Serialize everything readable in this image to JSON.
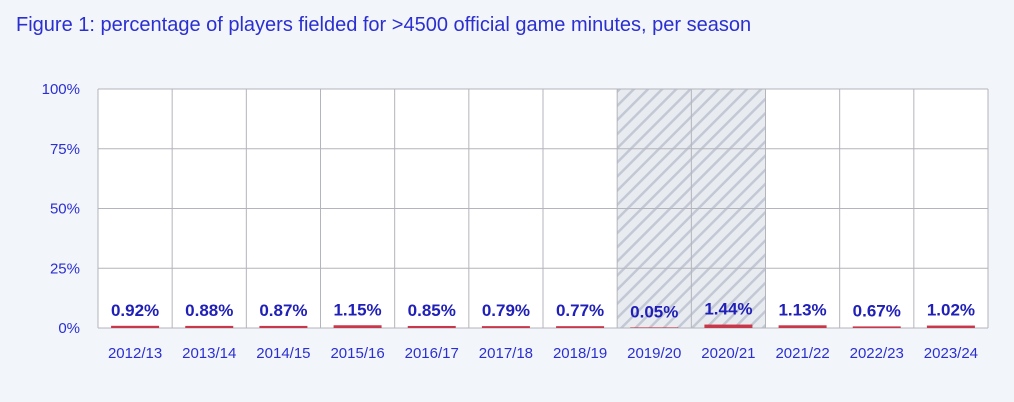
{
  "chart_data": {
    "type": "bar",
    "title": "Figure 1: percentage of players fielded for >4500 official game minutes, per season",
    "categories": [
      "2012/13",
      "2013/14",
      "2014/15",
      "2015/16",
      "2016/17",
      "2017/18",
      "2018/19",
      "2019/20",
      "2020/21",
      "2021/22",
      "2022/23",
      "2023/24"
    ],
    "values": [
      0.92,
      0.88,
      0.87,
      1.15,
      0.85,
      0.79,
      0.77,
      0.05,
      1.44,
      1.13,
      0.67,
      1.02
    ],
    "data_labels": [
      "0.92%",
      "0.88%",
      "0.87%",
      "1.15%",
      "0.85%",
      "0.79%",
      "0.77%",
      "0.05%",
      "1.44%",
      "1.13%",
      "0.67%",
      "1.02%"
    ],
    "ylim": [
      0,
      100
    ],
    "yticks": [
      "0%",
      "25%",
      "50%",
      "75%",
      "100%"
    ],
    "ytick_values": [
      0,
      25,
      50,
      75,
      100
    ],
    "highlighted_categories": [
      "2019/20",
      "2020/21"
    ],
    "grid": true,
    "colors": {
      "bar": "#c8384a",
      "text": "#2b2fd0",
      "label": "#2020b8",
      "grid": "#b4b4bc",
      "hatch": "#c3c9d4",
      "plot_bg": "#ffffff"
    }
  }
}
